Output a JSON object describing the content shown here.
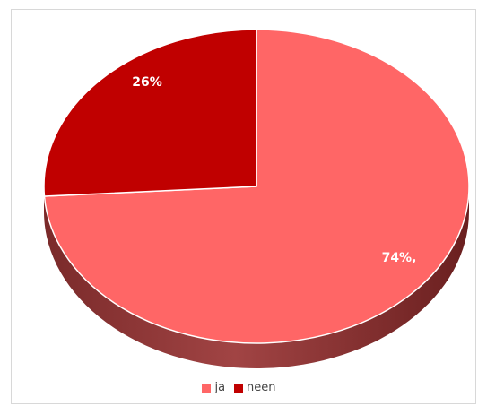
{
  "chart_data": {
    "type": "pie",
    "title": "",
    "categories": [
      "ja",
      "neen"
    ],
    "values": [
      74,
      26
    ],
    "data_labels": [
      "74%,",
      "26%"
    ],
    "colors": [
      "#ff6666",
      "#c00000"
    ],
    "side_colors": [
      "#8b3a3a",
      "#6e0f0f"
    ],
    "style": "3d",
    "legend_position": "bottom"
  },
  "legend": {
    "items": [
      {
        "label": "ja",
        "color": "#ff6666"
      },
      {
        "label": "neen",
        "color": "#c00000"
      }
    ]
  }
}
